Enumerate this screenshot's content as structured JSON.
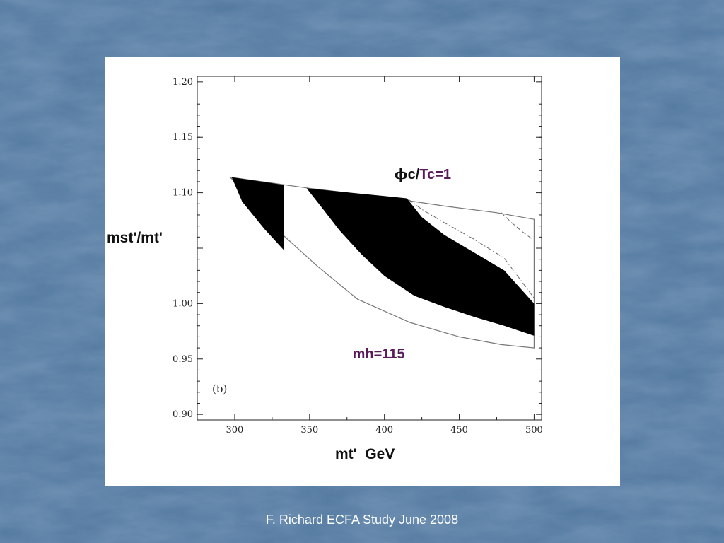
{
  "slide": {
    "footer": "F. Richard ECFA Study June 2008",
    "background_color": "#4f75a0"
  },
  "chart_data": {
    "type": "area",
    "panel_label": "(b)",
    "xlabel": "mt'  GeV",
    "ylabel": "mst'/mt'",
    "xlim": [
      275,
      505
    ],
    "ylim": [
      0.895,
      1.205
    ],
    "x_ticks": [
      300,
      350,
      400,
      450,
      500
    ],
    "y_ticks": [
      0.9,
      0.95,
      1.0,
      1.05,
      1.1,
      1.15,
      1.2
    ],
    "y_tick_labels": [
      "0.90",
      "0.95",
      "1.00",
      "",
      "1.10",
      "1.15",
      "1.20"
    ],
    "annotations": [
      {
        "text": "c/Tc=1",
        "symbol": "ϕ",
        "color": "#5a1a5a",
        "x": 418,
        "y": 1.117
      },
      {
        "text": "mh=115",
        "color": "#5a1a5a",
        "x": 400,
        "y": 0.955
      }
    ],
    "regions": [
      {
        "name": "allowed boundary",
        "fill": "#ffffff",
        "stroke": "#777777",
        "points": [
          [
            297,
            1.114
          ],
          [
            314,
            1.09
          ],
          [
            333,
            1.061
          ],
          [
            355,
            1.034
          ],
          [
            382,
            1.004
          ],
          [
            417,
            0.983
          ],
          [
            450,
            0.97
          ],
          [
            478,
            0.963
          ],
          [
            500,
            0.96
          ],
          [
            500,
            1.076
          ],
          [
            475,
            1.082
          ],
          [
            440,
            1.088
          ],
          [
            400,
            1.096
          ],
          [
            350,
            1.104
          ],
          [
            297,
            1.114
          ]
        ]
      },
      {
        "name": "phi-c/Tc=1 band left",
        "fill": "#000000",
        "points": [
          [
            298,
            1.114
          ],
          [
            333,
            1.107
          ],
          [
            333,
            1.048
          ],
          [
            320,
            1.067
          ],
          [
            305,
            1.092
          ]
        ]
      },
      {
        "name": "phi-c/Tc=1 band right",
        "fill": "#000000",
        "points": [
          [
            348,
            1.104
          ],
          [
            370,
            1.101
          ],
          [
            400,
            1.097
          ],
          [
            415,
            1.095
          ],
          [
            425,
            1.078
          ],
          [
            440,
            1.062
          ],
          [
            460,
            1.046
          ],
          [
            480,
            1.03
          ],
          [
            500,
            1.0
          ],
          [
            500,
            0.971
          ],
          [
            480,
            0.98
          ],
          [
            460,
            0.988
          ],
          [
            440,
            0.997
          ],
          [
            420,
            1.007
          ],
          [
            400,
            1.025
          ],
          [
            385,
            1.044
          ],
          [
            370,
            1.066
          ],
          [
            358,
            1.087
          ]
        ]
      }
    ],
    "series": [
      {
        "style": "dash-dot",
        "points": [
          [
            416,
            1.094
          ],
          [
            425,
            1.085
          ],
          [
            440,
            1.073
          ],
          [
            460,
            1.058
          ],
          [
            480,
            1.041
          ],
          [
            500,
            1.005
          ]
        ]
      },
      {
        "style": "dashed",
        "points": [
          [
            478,
            1.082
          ],
          [
            485,
            1.073
          ],
          [
            492,
            1.065
          ],
          [
            500,
            1.057
          ]
        ]
      }
    ]
  }
}
